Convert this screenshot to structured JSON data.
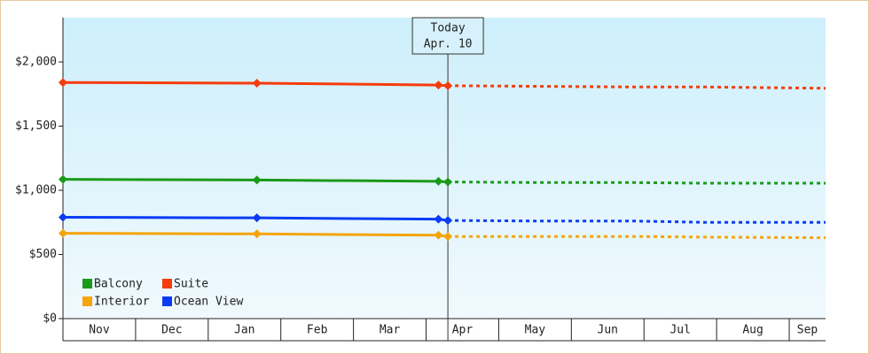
{
  "chart_data": {
    "type": "line",
    "months": [
      "Nov",
      "Dec",
      "Jan",
      "Feb",
      "Mar",
      "Apr",
      "May",
      "Jun",
      "Jul",
      "Aug",
      "Sep"
    ],
    "xlim": [
      0,
      10.5
    ],
    "x": [
      0,
      2.67,
      5.17,
      5.3
    ],
    "forecast_x": [
      5.3,
      6.6,
      7.9,
      8.85,
      10.5
    ],
    "ylim": [
      0,
      2345
    ],
    "yticks": [
      {
        "value": 0,
        "label": "$0"
      },
      {
        "value": 500,
        "label": "$500"
      },
      {
        "value": 1000,
        "label": "$1,000"
      },
      {
        "value": 1500,
        "label": "$1,500"
      },
      {
        "value": 2000,
        "label": "$2,000"
      }
    ],
    "annotation": {
      "lines": [
        "Today",
        "Apr. 10"
      ],
      "x": 5.3
    },
    "legend": "bottom-left",
    "series": [
      {
        "name": "Balcony",
        "color": "#1a9a1a",
        "values": [
          1085,
          1080,
          1070,
          1065
        ],
        "forecast": [
          1065,
          1060,
          1060,
          1055,
          1055
        ]
      },
      {
        "name": "Suite",
        "color": "#f53c0c",
        "values": [
          1840,
          1835,
          1820,
          1815
        ],
        "forecast": [
          1815,
          1810,
          1805,
          1805,
          1795
        ]
      },
      {
        "name": "Interior",
        "color": "#f5a40a",
        "values": [
          665,
          660,
          650,
          640
        ],
        "forecast": [
          640,
          640,
          640,
          635,
          630
        ]
      },
      {
        "name": "Ocean View",
        "color": "#0a3cf5",
        "values": [
          790,
          785,
          775,
          765
        ],
        "forecast": [
          765,
          760,
          760,
          750,
          750
        ]
      }
    ]
  }
}
